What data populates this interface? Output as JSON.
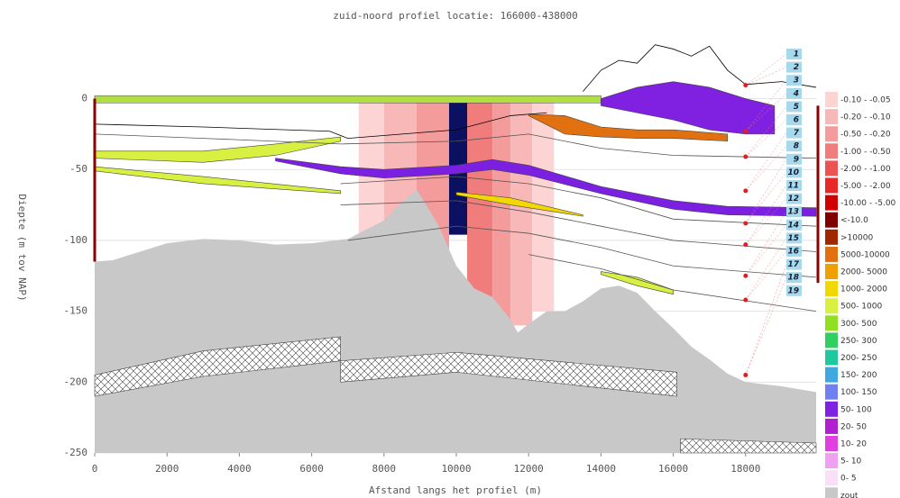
{
  "chart_data": {
    "type": "profile",
    "title": "zuid-noord profiel locatie: 166000-438000",
    "xlabel": "Afstand langs het profiel (m)",
    "ylabel": "Diepte (m tov NAP)",
    "xlim": [
      0,
      19950
    ],
    "ylim": [
      -250,
      41
    ],
    "xticks": [
      0,
      2000,
      4000,
      6000,
      8000,
      10000,
      12000,
      14000,
      16000,
      18000
    ],
    "yticks": [
      0,
      -50,
      -100,
      -150,
      -200,
      -250
    ],
    "grid": true,
    "columns": [
      {
        "color": "#fcd4d4",
        "x": [
          7300,
          8000
        ],
        "values": [
          -1,
          -100
        ]
      },
      {
        "color": "#f8b8b8",
        "x": [
          8000,
          8900
        ],
        "values": [
          -1,
          -100
        ]
      },
      {
        "color": "#f49c9c",
        "x": [
          8900,
          9800
        ],
        "values": [
          -1,
          -120
        ]
      },
      {
        "color": "#f07c7c",
        "x": [
          10300,
          11000
        ],
        "values": [
          -1,
          -140
        ]
      },
      {
        "color": "#f49c9c",
        "x": [
          11000,
          11500
        ],
        "values": [
          -1,
          -162
        ]
      },
      {
        "color": "#f8b8b8",
        "x": [
          11500,
          12100
        ],
        "values": [
          -1,
          -160
        ]
      },
      {
        "color": "#fcd4d4",
        "x": [
          12100,
          12700
        ],
        "values": [
          -1,
          -150
        ]
      },
      {
        "color": "#0c1060",
        "x": [
          9800,
          10300
        ],
        "values": [
          0,
          -96
        ]
      }
    ],
    "salt": {
      "color": "#c8c8c8",
      "x": [
        0,
        500,
        1000,
        2000,
        3000,
        4000,
        5000,
        6000,
        7000,
        8000,
        8500,
        8900,
        9500,
        10000,
        10500,
        11000,
        11500,
        11700,
        12000,
        12500,
        13000,
        13500,
        14000,
        14500,
        15000,
        15500,
        16000,
        16500,
        17000,
        17500,
        18000,
        19000,
        19950
      ],
      "values": [
        -115,
        -114,
        -110,
        -102,
        -99,
        -100,
        -103,
        -102,
        -99,
        -86,
        -73,
        -64,
        -89,
        -118,
        -134,
        -140,
        -156,
        -165,
        -159,
        -150,
        -150,
        -143,
        -134,
        -132,
        -137,
        -150,
        -162,
        -175,
        -184,
        -194,
        -200,
        -203,
        -207
      ]
    },
    "hatch": [
      {
        "x": [
          0,
          3000,
          6800
        ],
        "upper": [
          -195,
          -178,
          -168
        ],
        "lower": [
          -210,
          -196,
          -185
        ]
      },
      {
        "x": [
          6800,
          10000,
          16100
        ],
        "upper": [
          -185,
          -179,
          -193
        ],
        "lower": [
          -200,
          -193,
          -210
        ]
      },
      {
        "x": [
          16200,
          19950
        ],
        "upper": [
          -240,
          -243
        ],
        "lower": [
          -250,
          -250
        ]
      }
    ],
    "areas": [
      {
        "color": "#b0e040",
        "x": [
          0,
          7000,
          14000
        ],
        "upper": [
          2,
          2,
          2
        ],
        "lower": [
          -3,
          -3,
          -3
        ]
      },
      {
        "color": "#8020e0",
        "x": [
          14000,
          15000,
          16000,
          17000,
          18000,
          18800
        ],
        "upper": [
          0,
          8,
          12,
          8,
          0,
          -5
        ],
        "lower": [
          -5,
          -10,
          -15,
          -22,
          -25,
          -25
        ]
      },
      {
        "color": "#e07010",
        "x": [
          12000,
          13000,
          14000,
          15000,
          16000,
          17500
        ],
        "upper": [
          -11,
          -12,
          -20,
          -22,
          -22,
          -25
        ],
        "lower": [
          -12,
          -25,
          -27,
          -28,
          -28,
          -30
        ]
      },
      {
        "color": "#d8f040",
        "x": [
          0,
          3000,
          5000,
          6800
        ],
        "upper": [
          -37,
          -37,
          -32,
          -27
        ],
        "lower": [
          -42,
          -45,
          -40,
          -30
        ]
      },
      {
        "color": "#d8f040",
        "x": [
          0,
          3000,
          6800
        ],
        "upper": [
          -48,
          -55,
          -65
        ],
        "lower": [
          -51,
          -60,
          -67
        ]
      },
      {
        "color": "#f0d800",
        "x": [
          10000,
          11500,
          13500
        ],
        "upper": [
          -66,
          -70,
          -82
        ],
        "lower": [
          -68,
          -75,
          -83
        ]
      },
      {
        "color": "#d8f040",
        "x": [
          14000,
          15000,
          16000
        ],
        "upper": [
          -122,
          -126,
          -135
        ],
        "lower": [
          -124,
          -132,
          -138
        ]
      },
      {
        "color": "#7b1fe0",
        "x": [
          5000,
          6800,
          8000,
          10000,
          11000,
          12000,
          14000,
          16000,
          17500,
          19950
        ],
        "upper": [
          -42,
          -48,
          -50,
          -47,
          -43,
          -47,
          -62,
          -72,
          -76,
          -77
        ],
        "lower": [
          -44,
          -53,
          -56,
          -53,
          -50,
          -54,
          -67,
          -78,
          -82,
          -83
        ]
      }
    ],
    "lines": [
      {
        "color": "#000",
        "x": [
          0,
          3000,
          6500,
          7000,
          10000,
          11500,
          12500
        ],
        "values": [
          -18,
          -20,
          -23,
          -28,
          -22,
          -12,
          -10
        ]
      },
      {
        "color": "#555",
        "x": [
          0,
          3000,
          6800,
          10000,
          12000,
          14000,
          16000,
          19950
        ],
        "values": [
          -25,
          -28,
          -32,
          -30,
          -25,
          -35,
          -40,
          -42
        ]
      },
      {
        "color": "#555",
        "x": [
          6800,
          10000,
          12000,
          14000,
          16000,
          19950
        ],
        "values": [
          -60,
          -55,
          -60,
          -70,
          -85,
          -90
        ]
      },
      {
        "color": "#555",
        "x": [
          6800,
          10000,
          12000,
          14000,
          16000,
          19950
        ],
        "values": [
          -75,
          -72,
          -80,
          -90,
          -100,
          -108
        ]
      },
      {
        "color": "#555",
        "x": [
          7000,
          10000,
          12000,
          14000,
          16000,
          19950
        ],
        "values": [
          -100,
          -90,
          -95,
          -105,
          -118,
          -126
        ]
      },
      {
        "color": "#555",
        "x": [
          12000,
          14000,
          16000,
          19950
        ],
        "values": [
          -110,
          -120,
          -135,
          -150
        ]
      },
      {
        "color": "#000",
        "x": [
          13500,
          14000,
          14500,
          15000,
          15500,
          16000,
          16500,
          17000,
          17500,
          18000,
          19000,
          19950
        ],
        "values": [
          5,
          20,
          27,
          25,
          38,
          35,
          30,
          37,
          20,
          10,
          12,
          8
        ]
      }
    ],
    "points": {
      "color": "#e02020",
      "x": [
        18000,
        18000,
        18000,
        18000,
        18000,
        18000,
        18000,
        18000,
        18000
      ],
      "values": [
        9.5,
        -23,
        -41,
        -65,
        -88,
        -103,
        -125,
        -142,
        -195
      ]
    },
    "labels": [
      "1",
      "2",
      "3",
      "4",
      "5",
      "6",
      "7",
      "8",
      "9",
      "10",
      "11",
      "12",
      "13",
      "14",
      "15",
      "16",
      "17",
      "18",
      "19"
    ],
    "legend": [
      {
        "name": "-0.10 - -0.05",
        "color": "#fcd4d4"
      },
      {
        "name": "-0.20 - -0.10",
        "color": "#f8b8b8"
      },
      {
        "name": "-0.50 - -0.20",
        "color": "#f49c9c"
      },
      {
        "name": "-1.00 - -0.50",
        "color": "#f07c7c"
      },
      {
        "name": "-2.00 - -1.00",
        "color": "#ec5454"
      },
      {
        "name": "-5.00 - -2.00",
        "color": "#e82828"
      },
      {
        "name": "-10.00 - -5.00",
        "color": "#d00000"
      },
      {
        "name": "<-10.0",
        "color": "#800000"
      },
      {
        "name": ">10000",
        "color": "#a02800"
      },
      {
        "name": "5000-10000",
        "color": "#e07010"
      },
      {
        "name": "2000- 5000",
        "color": "#f0a000"
      },
      {
        "name": "1000- 2000",
        "color": "#f0d800"
      },
      {
        "name": "500- 1000",
        "color": "#d8f040"
      },
      {
        "name": "300- 500",
        "color": "#90e020"
      },
      {
        "name": "250- 300",
        "color": "#30d060"
      },
      {
        "name": "200- 250",
        "color": "#20c8a0"
      },
      {
        "name": "150- 200",
        "color": "#40a8e0"
      },
      {
        "name": "100- 150",
        "color": "#7080f0"
      },
      {
        "name": "50- 100",
        "color": "#8020e0"
      },
      {
        "name": "20- 50",
        "color": "#b020d0"
      },
      {
        "name": "10- 20",
        "color": "#e040e0"
      },
      {
        "name": "5- 10",
        "color": "#f0a0f0"
      },
      {
        "name": "0- 5",
        "color": "#f8e0f8"
      },
      {
        "name": "zout",
        "color": "#c8c8c8"
      }
    ]
  }
}
